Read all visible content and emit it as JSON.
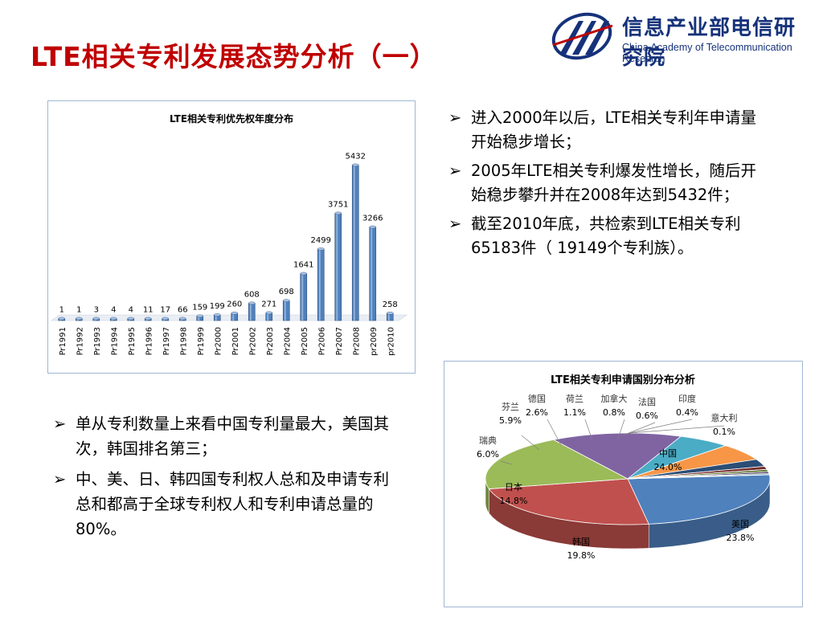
{
  "slide": {
    "title": "LTE相关专利发展态势分析（一）",
    "logo_cn": "信息产业部电信研究院",
    "logo_en": "China Academy of Telecommunication Research",
    "logo_icon": "catr-emblem-icon"
  },
  "bullets_right": [
    "进入2000年以后，LTE相关专利年申请量开始稳步增长；",
    "2005年LTE相关专利爆发性增长，随后开始稳步攀升并在2008年达到5432件；",
    "截至2010年底，共检索到LTE相关专利65183件（ 19149个专利族）。"
  ],
  "bullets_left": [
    "单从专利数量上来看中国专利量最大，美国其次，韩国排名第三；",
    "中、美、日、韩四国专利权人总和及申请专利总和都高于全球专利权人和专利申请总量的80%。"
  ],
  "bullet_marker": "➢",
  "chart_data": [
    {
      "type": "bar",
      "title": "LTE相关专利优先权年度分布",
      "categories": [
        "Pr1991",
        "Pr1992",
        "Pr1993",
        "Pr1994",
        "Pr1995",
        "Pr1996",
        "Pr1997",
        "Pr1998",
        "Pr1999",
        "Pr2000",
        "Pr2001",
        "Pr2002",
        "Pr2003",
        "Pr2004",
        "Pr2005",
        "Pr2006",
        "Pr2007",
        "Pr2008",
        "pr2009",
        "pr2010"
      ],
      "values": [
        1,
        1,
        3,
        4,
        4,
        11,
        17,
        66,
        159,
        199,
        260,
        608,
        271,
        698,
        1641,
        2499,
        3751,
        5432,
        3266,
        258
      ],
      "ylim": [
        0,
        5500
      ],
      "bar_color": "#4f81bd",
      "data_labels": true,
      "grid": false
    },
    {
      "type": "pie",
      "title": "LTE相关专利申请国别分布分析",
      "labels": [
        "中国",
        "美国",
        "韩国",
        "日本",
        "瑞典",
        "芬兰",
        "德国",
        "荷兰",
        "加拿大",
        "法国",
        "印度",
        "意大利"
      ],
      "values": [
        24.0,
        23.8,
        19.8,
        14.8,
        6.0,
        5.9,
        2.6,
        1.1,
        0.8,
        0.6,
        0.4,
        0.1
      ],
      "value_labels": [
        "24.0%",
        "23.8%",
        "19.8%",
        "14.8%",
        "6.0%",
        "5.9%",
        "2.6%",
        "1.1%",
        "0.8%",
        "0.6%",
        "0.4%",
        "0.1%"
      ],
      "colors": [
        "#4f81bd",
        "#c0504d",
        "#9bbb59",
        "#8064a2",
        "#4bacc6",
        "#f79646",
        "#2c4d75",
        "#772c2a",
        "#5f7530",
        "#4d3b62",
        "#276a7c",
        "#b65708"
      ]
    }
  ]
}
